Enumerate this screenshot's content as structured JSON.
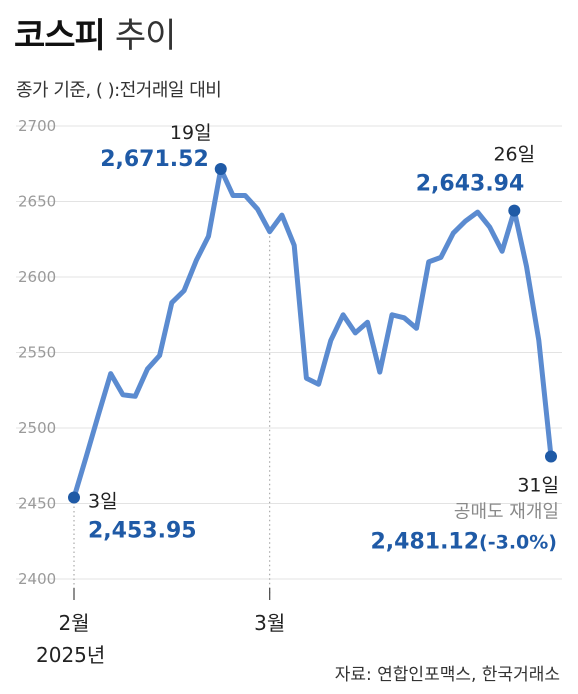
{
  "title_bold": "코스피",
  "title_light": "추이",
  "subtitle": "종가 기준, ( ):전거래일 대비",
  "source": "자료: 연합인포맥스, 한국거래소",
  "colors": {
    "line": "#5b8bd0",
    "marker": "#1f5aa6",
    "accent_text": "#1f5aa6",
    "gridline": "#e3e3e3"
  },
  "chart_data": {
    "type": "line",
    "title": "코스피 추이",
    "ylim": [
      2400,
      2700
    ],
    "yticks": [
      2400,
      2450,
      2500,
      2550,
      2600,
      2650,
      2700
    ],
    "xtick_labels": [
      {
        "label": "2월",
        "index": 0,
        "year": "2025년"
      },
      {
        "label": "3월",
        "index": 16
      }
    ],
    "values": [
      2453.95,
      2481,
      2509,
      2536,
      2522,
      2521,
      2539,
      2548,
      2583,
      2591,
      2611,
      2627,
      2671.52,
      2654,
      2654,
      2645,
      2630,
      2641,
      2621,
      2533,
      2529,
      2558,
      2575,
      2563,
      2570,
      2537,
      2575,
      2573,
      2566,
      2610,
      2613,
      2629,
      2637,
      2643,
      2633,
      2617,
      2643.94,
      2607,
      2558,
      2481.12
    ],
    "annotations": [
      {
        "index": 0,
        "day": "3일",
        "value": "2,453.95"
      },
      {
        "index": 12,
        "day": "19일",
        "value": "2,671.52"
      },
      {
        "index": 36,
        "day": "26일",
        "value": "2,643.94"
      },
      {
        "index": 39,
        "day": "31일",
        "note": "공매도 재개일",
        "value": "2,481.12",
        "change": "(-3.0%)"
      }
    ]
  }
}
